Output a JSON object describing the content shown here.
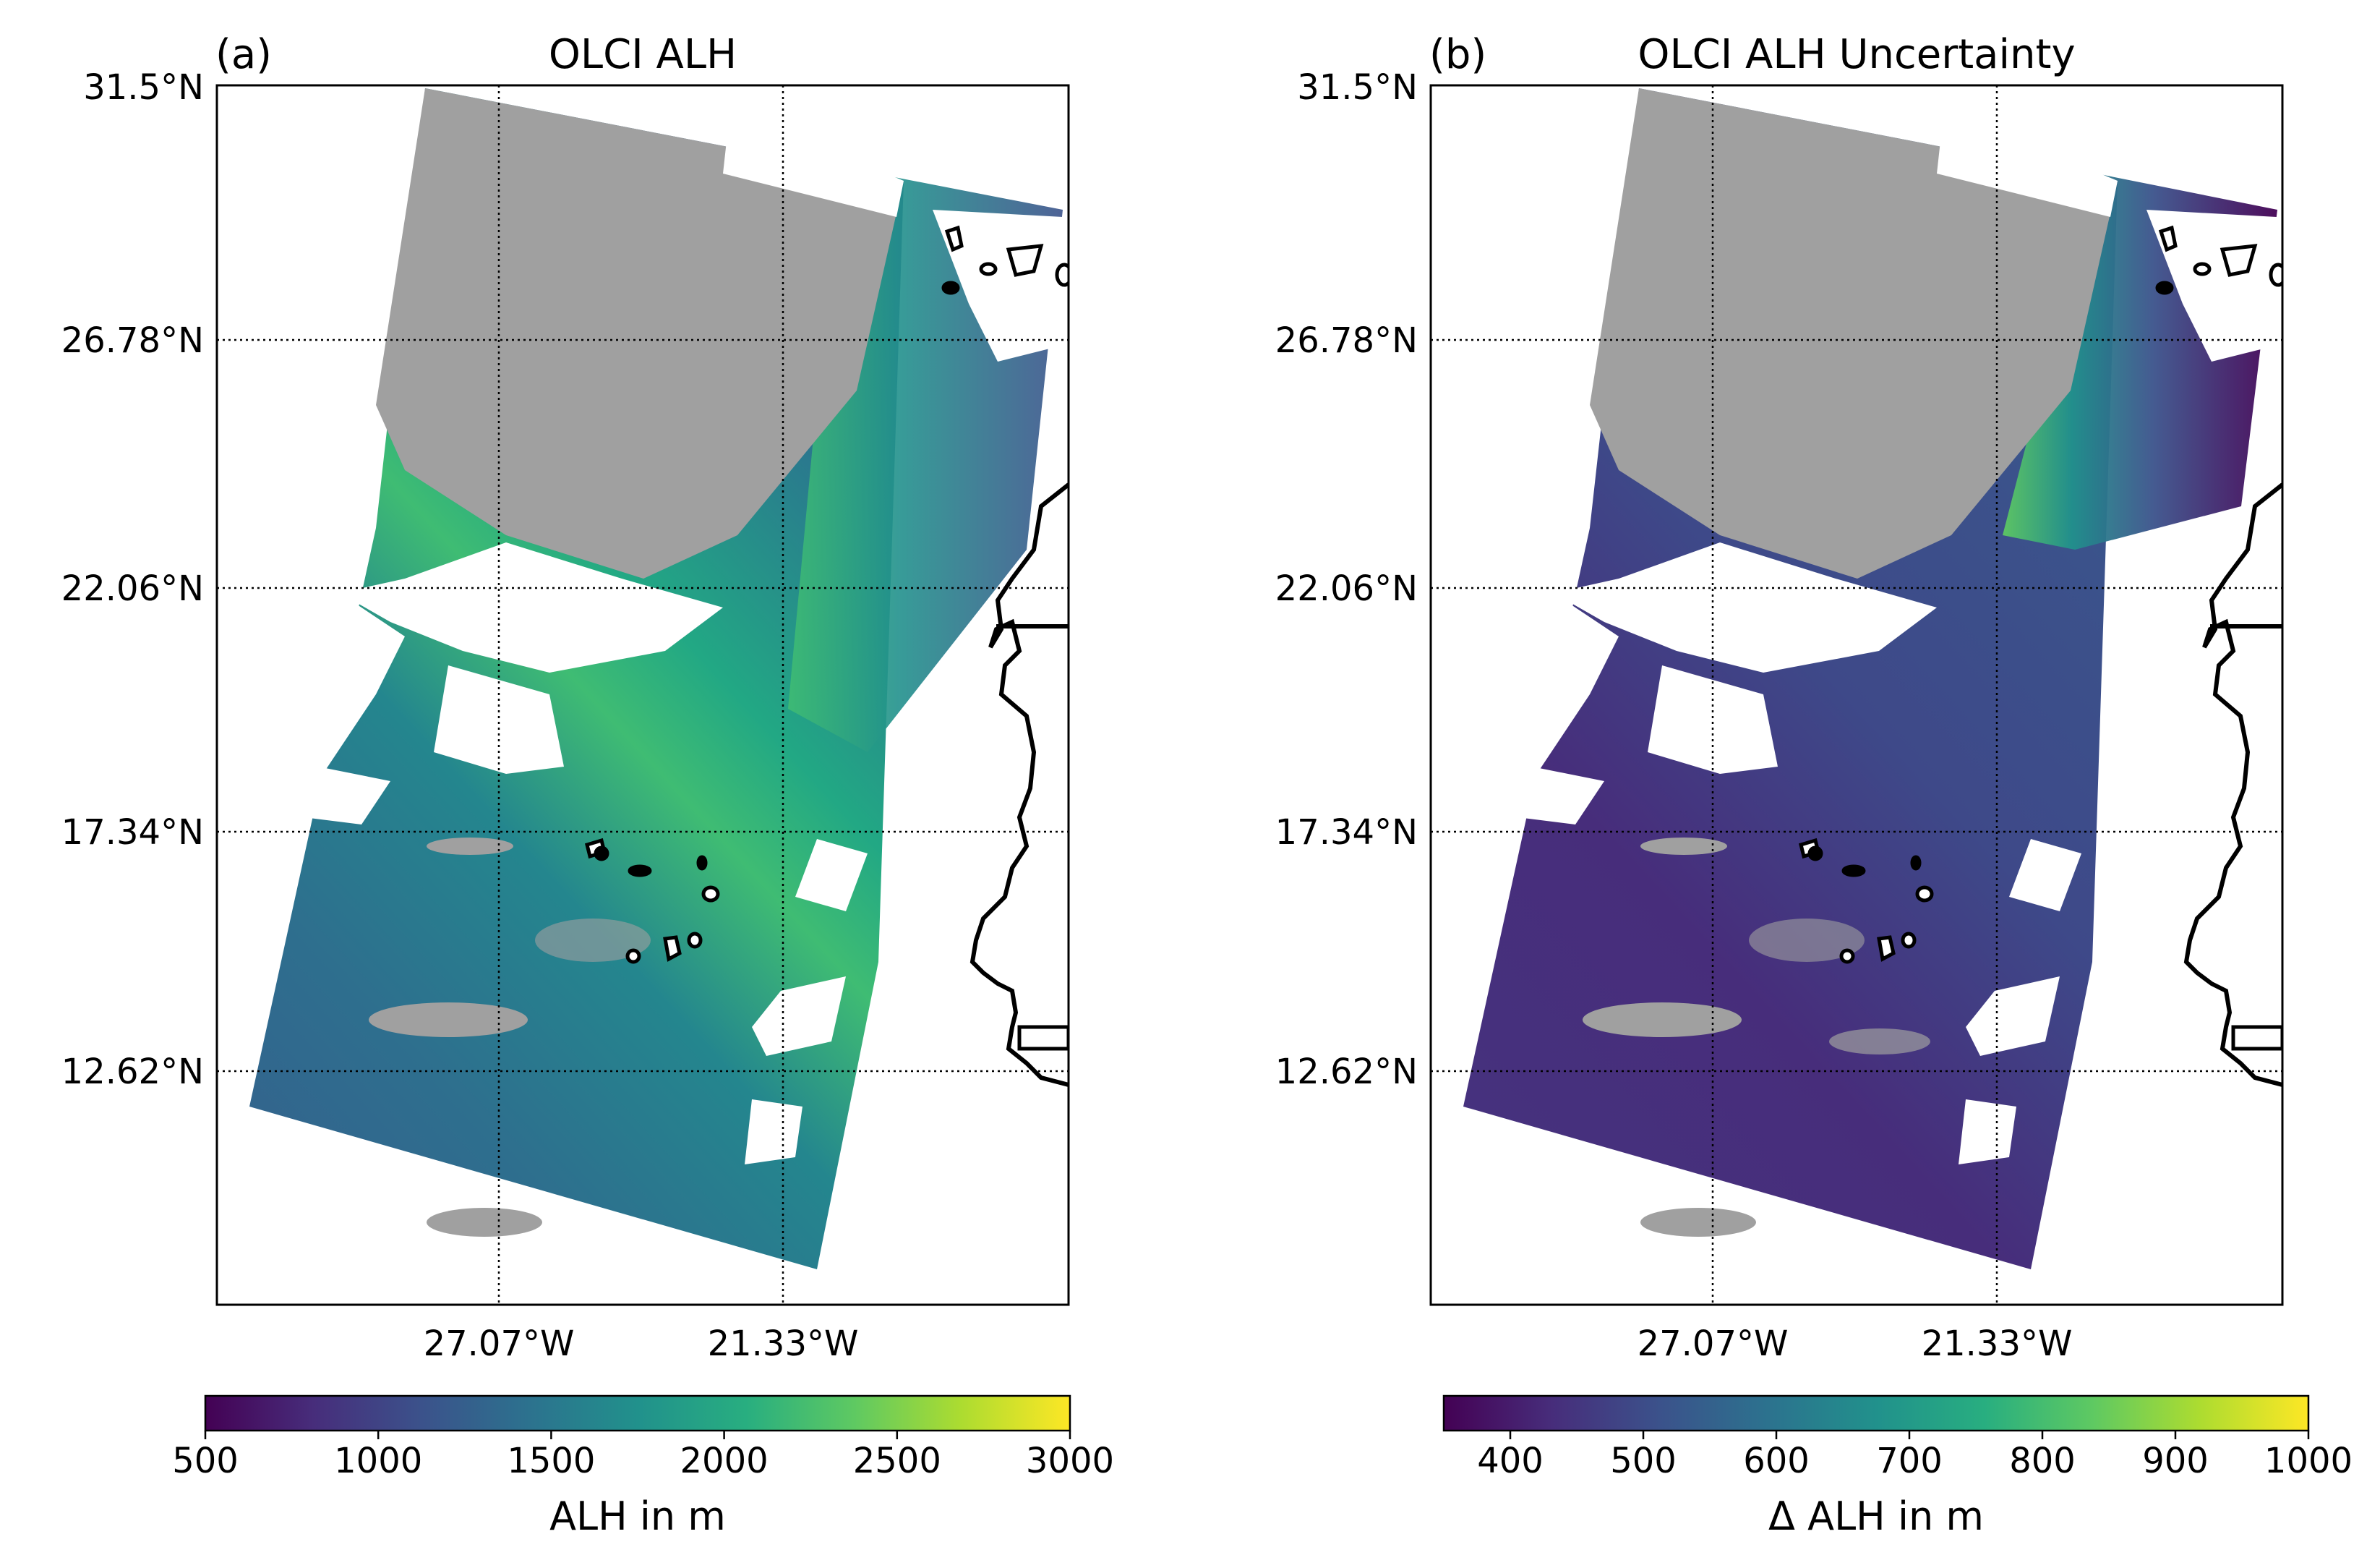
{
  "chart_data": [
    {
      "type": "heatmap",
      "panel_label": "(a)",
      "title": "OLCI ALH",
      "lat_tick_labels": [
        "31.5°N",
        "26.78°N",
        "22.06°N",
        "17.34°N",
        "12.62°N"
      ],
      "lon_tick_labels": [
        "27.07°W",
        "21.33°W"
      ],
      "lat_ticks": [
        31.5,
        26.78,
        22.06,
        17.34,
        12.62
      ],
      "lon_ticks": [
        -27.07,
        -21.33
      ],
      "colorbar": {
        "label": "ALH in m",
        "range": [
          500,
          3000
        ],
        "ticks": [
          500,
          1000,
          1500,
          2000,
          2500,
          3000
        ],
        "tick_labels": [
          "500",
          "1000",
          "1500",
          "2000",
          "2500",
          "3000"
        ],
        "colormap": "viridis"
      },
      "colors": {
        "no_retrieval": "#a0a0a0",
        "coastline": "#000000",
        "grid": "#000000"
      }
    },
    {
      "type": "heatmap",
      "panel_label": "(b)",
      "title": "OLCI ALH Uncertainty",
      "lat_tick_labels": [
        "31.5°N",
        "26.78°N",
        "22.06°N",
        "17.34°N",
        "12.62°N"
      ],
      "lon_tick_labels": [
        "27.07°W",
        "21.33°W"
      ],
      "lat_ticks": [
        31.5,
        26.78,
        22.06,
        17.34,
        12.62
      ],
      "lon_ticks": [
        -27.07,
        -21.33
      ],
      "colorbar": {
        "label": "Δ ALH in m",
        "range": [
          350,
          1000
        ],
        "ticks": [
          400,
          500,
          600,
          700,
          800,
          900,
          1000
        ],
        "tick_labels": [
          "400",
          "500",
          "600",
          "700",
          "800",
          "900",
          "1000"
        ],
        "colormap": "viridis"
      },
      "colors": {
        "no_retrieval": "#a0a0a0",
        "coastline": "#000000",
        "grid": "#000000"
      }
    }
  ]
}
